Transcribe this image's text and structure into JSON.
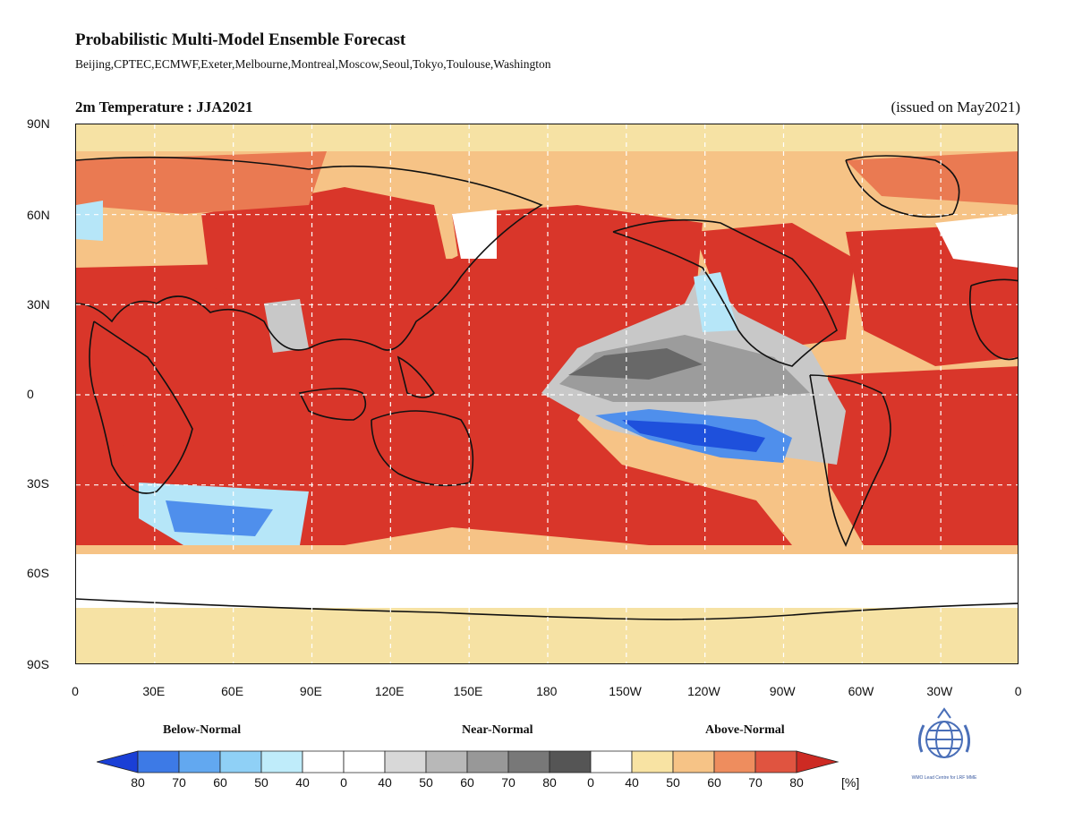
{
  "header": {
    "title": "Probabilistic Multi-Model Ensemble Forecast",
    "centres": "Beijing,CPTEC,ECMWF,Exeter,Melbourne,Montreal,Moscow,Seoul,Tokyo,Toulouse,Washington"
  },
  "map": {
    "title": "2m Temperature : JJA2021",
    "issued": "(issued on May2021)",
    "lat_labels": [
      "90N",
      "60N",
      "30N",
      "0",
      "30S",
      "60S",
      "90S"
    ],
    "lon_labels": [
      "0",
      "30E",
      "60E",
      "90E",
      "120E",
      "150E",
      "180",
      "150W",
      "120W",
      "90W",
      "60W",
      "30W",
      "0"
    ]
  },
  "legend": {
    "categories": [
      "Below-Normal",
      "Near-Normal",
      "Above-Normal"
    ],
    "labels": [
      "80",
      "70",
      "60",
      "50",
      "40",
      "0",
      "40",
      "50",
      "60",
      "70",
      "80",
      "0",
      "40",
      "50",
      "60",
      "70",
      "80"
    ],
    "unit": "[%]",
    "colors": [
      "#1a3fd6",
      "#3d7ae6",
      "#62a8f0",
      "#8fd0f6",
      "#bfecfa",
      "#ffffff",
      "#ffffff",
      "#d8d8d8",
      "#b8b8b8",
      "#989898",
      "#787878",
      "#555555",
      "#ffffff",
      "#f8e3a3",
      "#f6c386",
      "#ee8d5e",
      "#e05440",
      "#cd2a23"
    ]
  },
  "logo": {
    "caption": "WMO Lead Centre for LRF MME"
  },
  "palette": {
    "ocean_base": "#f6e2a4",
    "above_strong": "#d9362a",
    "above_mid": "#ea7a52",
    "above_light": "#f6c386",
    "near_dark": "#686868",
    "near_mid": "#9c9c9c",
    "near_light": "#c8c8c8",
    "below_strong": "#1e50dc",
    "below_mid": "#4f8fec",
    "below_light": "#b6e6f8",
    "white": "#ffffff",
    "coast": "#111111"
  }
}
